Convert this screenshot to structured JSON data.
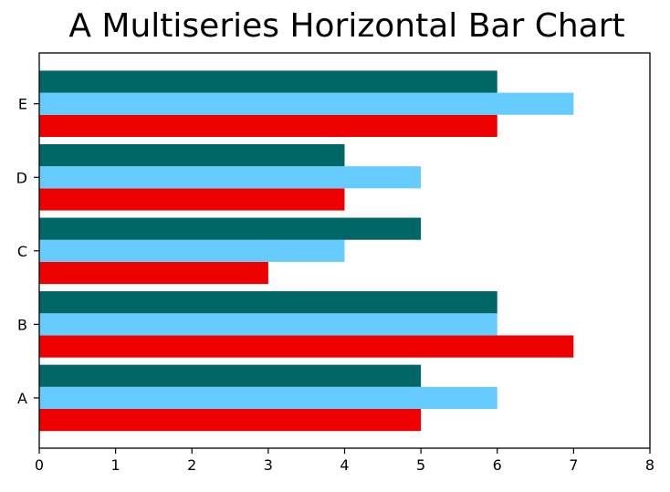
{
  "chart_data": {
    "type": "bar",
    "orientation": "horizontal",
    "title": "A Multiseries Horizontal Bar Chart",
    "xlabel": "",
    "ylabel": "",
    "categories": [
      "A",
      "B",
      "C",
      "D",
      "E"
    ],
    "xlim": [
      0,
      8
    ],
    "xticks": [
      0,
      1,
      2,
      3,
      4,
      5,
      6,
      7,
      8
    ],
    "grid": false,
    "series": [
      {
        "values": [
          5,
          7,
          3,
          4,
          6
        ],
        "color": "#ee0000"
      },
      {
        "values": [
          6,
          6,
          4,
          5,
          7
        ],
        "color": "#66ccff"
      },
      {
        "values": [
          5,
          6,
          5,
          4,
          6
        ],
        "color": "#006666"
      }
    ]
  }
}
